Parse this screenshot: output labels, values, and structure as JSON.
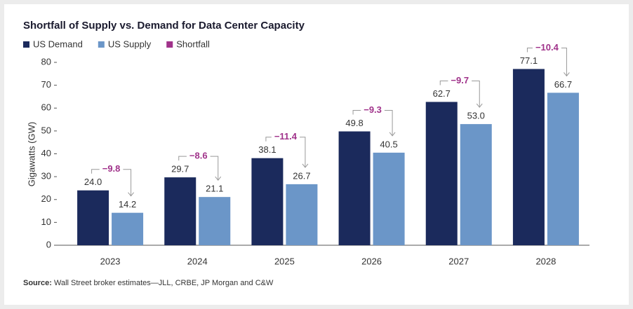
{
  "chart_data": {
    "type": "bar",
    "title": "Shortfall of Supply vs. Demand for Data Center Capacity",
    "y_label": "Gigawatts (GW)",
    "categories": [
      "2023",
      "2024",
      "2025",
      "2026",
      "2027",
      "2028"
    ],
    "series": [
      {
        "name": "US Demand",
        "color": "#1b2a5c",
        "values": [
          24,
          29.7,
          38.1,
          49.8,
          62.7,
          77.1
        ],
        "value_labels": [
          "24.0",
          "29.7",
          "38.1",
          "49.8",
          "62.7",
          "77.1"
        ]
      },
      {
        "name": "US Supply",
        "color": "#6b96c8",
        "values": [
          14.2,
          21.1,
          26.7,
          40.5,
          53,
          66.7
        ],
        "value_labels": [
          "14.2",
          "21.1",
          "26.7",
          "40.5",
          "53.0",
          "66.7"
        ]
      },
      {
        "name": "Shortfall",
        "color": "#a0328a",
        "values": [
          -9.8,
          -8.6,
          -11.4,
          -9.3,
          -9.7,
          -10.4
        ],
        "value_labels": [
          "−9.8",
          "−8.6",
          "−11.4",
          "−9.3",
          "−9.7",
          "−10.4"
        ]
      }
    ],
    "ylim": [
      0,
      80
    ],
    "yticks": [
      0,
      10,
      20,
      30,
      40,
      50,
      60,
      70,
      80
    ],
    "grid": false,
    "source_label": "Source:",
    "source": "Wall Street broker estimates—JLL, CRBE, JP Morgan and C&W"
  }
}
